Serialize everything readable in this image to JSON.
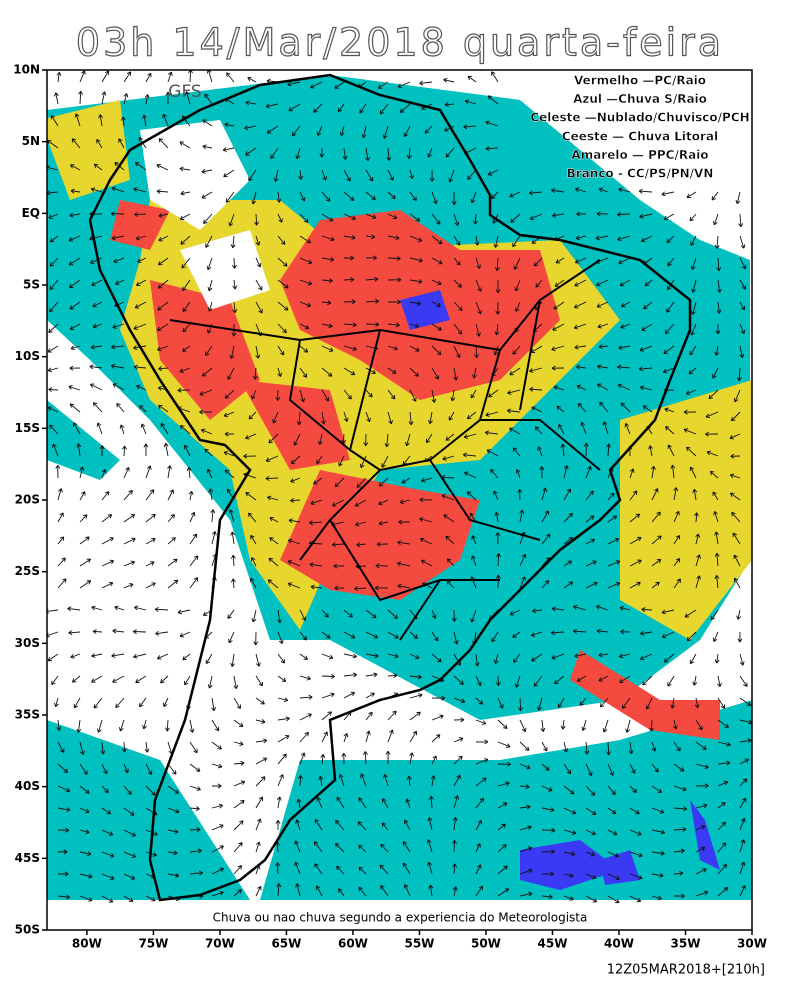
{
  "map": {
    "title": "03h 14/Mar/2018 quarta-feira",
    "model": "GFS",
    "legend": [
      "Vermelho —PC/Raio",
      "Azul —Chuva S/Raio",
      "Celeste —Nublado/Chuvisco/PCH",
      "Ceeste — Chuva Litoral",
      "Amarelo — PPC/Raio",
      "Branco - CC/PS/PN/VN"
    ],
    "lat_range": [
      10,
      -50
    ],
    "lon_range": [
      -83,
      -30
    ],
    "lat_ticks": [
      {
        "value": 10,
        "label": "10N"
      },
      {
        "value": 5,
        "label": "5N"
      },
      {
        "value": 0,
        "label": "EQ"
      },
      {
        "value": -5,
        "label": "5S"
      },
      {
        "value": -10,
        "label": "10S"
      },
      {
        "value": -15,
        "label": "15S"
      },
      {
        "value": -20,
        "label": "20S"
      },
      {
        "value": -25,
        "label": "25S"
      },
      {
        "value": -30,
        "label": "30S"
      },
      {
        "value": -35,
        "label": "35S"
      },
      {
        "value": -40,
        "label": "40S"
      },
      {
        "value": -45,
        "label": "45S"
      },
      {
        "value": -50,
        "label": "50S"
      }
    ],
    "lon_ticks": [
      {
        "value": -80,
        "label": "80W"
      },
      {
        "value": -75,
        "label": "75W"
      },
      {
        "value": -70,
        "label": "70W"
      },
      {
        "value": -65,
        "label": "65W"
      },
      {
        "value": -60,
        "label": "60W"
      },
      {
        "value": -55,
        "label": "55W"
      },
      {
        "value": -50,
        "label": "50W"
      },
      {
        "value": -45,
        "label": "45W"
      },
      {
        "value": -40,
        "label": "40W"
      },
      {
        "value": -35,
        "label": "35W"
      },
      {
        "value": -30,
        "label": "30W"
      }
    ],
    "caption": "Chuva ou nao chuva segundo a experiencia do Meteorologista",
    "footer": "12Z05MAR2018+[210h]"
  }
}
